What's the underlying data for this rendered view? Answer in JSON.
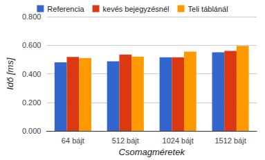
{
  "chart_data": {
    "type": "bar",
    "x_label": "Csomagméretek",
    "y_label": "Idő [ms]",
    "categories": [
      "64 bájt",
      "512 bájt",
      "1024 bájt",
      "1512 bájt"
    ],
    "series": [
      {
        "name": "Referencia",
        "color": "#3366cc",
        "values": [
          0.48,
          0.487,
          0.515,
          0.55
        ]
      },
      {
        "name": "kevés bejegyzésnél",
        "color": "#dc3912",
        "values": [
          0.518,
          0.535,
          0.515,
          0.56
        ]
      },
      {
        "name": "Teli táblánál",
        "color": "#ff9900",
        "values": [
          0.51,
          0.52,
          0.555,
          0.595
        ]
      }
    ],
    "ylim": [
      0,
      0.8
    ],
    "yticks": [
      {
        "value": 0,
        "label": "0.000"
      },
      {
        "value": 0.2,
        "label": "0.200"
      },
      {
        "value": 0.4,
        "label": "0.400"
      },
      {
        "value": 0.6,
        "label": "0.600"
      },
      {
        "value": 0.8,
        "label": "0.800"
      }
    ],
    "grid": true,
    "legend": "top"
  }
}
